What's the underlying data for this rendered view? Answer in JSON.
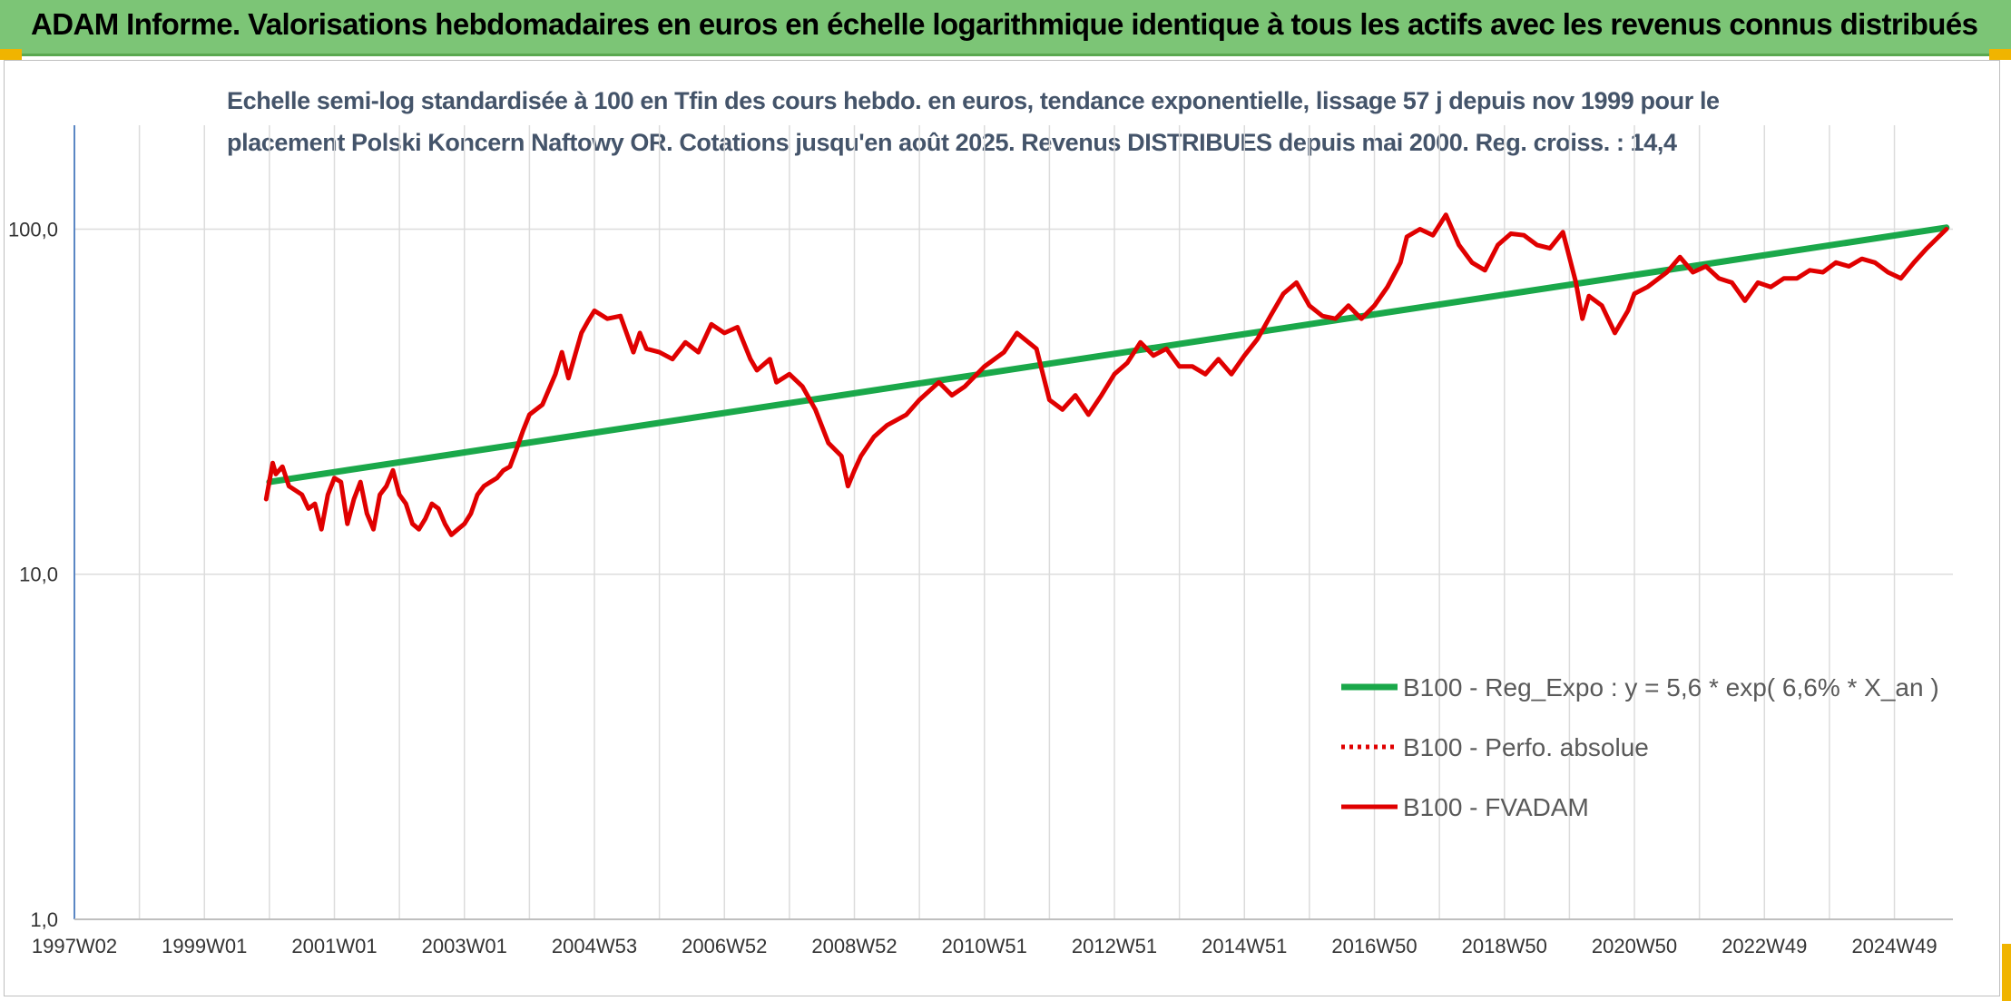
{
  "header": {
    "title": "ADAM Informe. Valorisations hebdomadaires en euros en échelle logarithmique identique à tous les actifs avec les revenus connus distribués",
    "background_color": "#7cc576"
  },
  "chart_data": {
    "type": "line",
    "title_line1": "Echelle semi-log standardisée à 100 en Tfin des cours hebdo. en euros, tendance exponentielle, lissage 57 j depuis nov 1999 pour le",
    "title_line2": "placement Polski Koncern Naftowy OR. Cotations jusqu'en août 2025. Revenus DISTRIBUES depuis mai 2000. Reg. croiss. : 14,4",
    "y_scale": "log",
    "ylim": [
      1,
      200
    ],
    "y_ticks": [
      {
        "value": 1,
        "label": "1,0"
      },
      {
        "value": 10,
        "label": "10,0"
      },
      {
        "value": 100,
        "label": "100,0"
      }
    ],
    "xlim": [
      1997.0,
      2025.9
    ],
    "x_ticks": [
      {
        "value": 1997.0,
        "label": "1997W02"
      },
      {
        "value": 1999.0,
        "label": "1999W01"
      },
      {
        "value": 2001.0,
        "label": "2001W01"
      },
      {
        "value": 2003.0,
        "label": "2003W01"
      },
      {
        "value": 2005.0,
        "label": "2004W53"
      },
      {
        "value": 2007.0,
        "label": "2006W52"
      },
      {
        "value": 2009.0,
        "label": "2008W52"
      },
      {
        "value": 2011.0,
        "label": "2010W51"
      },
      {
        "value": 2013.0,
        "label": "2012W51"
      },
      {
        "value": 2015.0,
        "label": "2014W51"
      },
      {
        "value": 2017.0,
        "label": "2016W50"
      },
      {
        "value": 2019.0,
        "label": "2018W50"
      },
      {
        "value": 2021.0,
        "label": "2020W50"
      },
      {
        "value": 2023.0,
        "label": "2022W49"
      },
      {
        "value": 2025.0,
        "label": "2024W49"
      }
    ],
    "x_gridlines": [
      1997.0,
      1998.0,
      1999.0,
      2000.0,
      2001.0,
      2002.0,
      2003.0,
      2004.0,
      2005.0,
      2006.0,
      2007.0,
      2008.0,
      2009.0,
      2010.0,
      2011.0,
      2012.0,
      2013.0,
      2014.0,
      2015.0,
      2016.0,
      2017.0,
      2018.0,
      2019.0,
      2020.0,
      2021.0,
      2022.0,
      2023.0,
      2024.0,
      2025.0
    ],
    "legend_position": "right",
    "series": [
      {
        "name": "B100 - Reg_Expo : y = 5,6 * exp( 6,6% *  X_an )",
        "color": "#1aa84a",
        "style": "solid",
        "x": [
          2000.0,
          2025.8
        ],
        "y": [
          18.5,
          101
        ]
      },
      {
        "name": "B100 - Perfo. absolue",
        "color": "#e00000",
        "style": "dotted",
        "x": [],
        "y": []
      },
      {
        "name": "B100 - FVADAM",
        "color": "#e00000",
        "style": "solid",
        "x": [
          1999.95,
          2000.05,
          2000.1,
          2000.2,
          2000.3,
          2000.4,
          2000.5,
          2000.6,
          2000.7,
          2000.8,
          2000.9,
          2001.0,
          2001.1,
          2001.2,
          2001.3,
          2001.4,
          2001.5,
          2001.6,
          2001.7,
          2001.8,
          2001.9,
          2002.0,
          2002.1,
          2002.2,
          2002.3,
          2002.4,
          2002.5,
          2002.6,
          2002.7,
          2002.8,
          2002.9,
          2003.0,
          2003.1,
          2003.2,
          2003.3,
          2003.4,
          2003.5,
          2003.6,
          2003.7,
          2003.8,
          2003.9,
          2004.0,
          2004.2,
          2004.4,
          2004.5,
          2004.6,
          2004.8,
          2004.9,
          2005.0,
          2005.2,
          2005.4,
          2005.6,
          2005.7,
          2005.8,
          2006.0,
          2006.2,
          2006.4,
          2006.6,
          2006.8,
          2007.0,
          2007.2,
          2007.4,
          2007.5,
          2007.7,
          2007.8,
          2008.0,
          2008.2,
          2008.4,
          2008.6,
          2008.8,
          2008.9,
          2009.0,
          2009.1,
          2009.3,
          2009.5,
          2009.8,
          2010.0,
          2010.3,
          2010.5,
          2010.7,
          2011.0,
          2011.3,
          2011.5,
          2011.8,
          2012.0,
          2012.2,
          2012.4,
          2012.6,
          2012.8,
          2013.0,
          2013.2,
          2013.4,
          2013.6,
          2013.8,
          2014.0,
          2014.2,
          2014.4,
          2014.6,
          2014.8,
          2015.0,
          2015.2,
          2015.4,
          2015.6,
          2015.8,
          2016.0,
          2016.2,
          2016.4,
          2016.6,
          2016.8,
          2017.0,
          2017.2,
          2017.4,
          2017.5,
          2017.7,
          2017.9,
          2018.1,
          2018.3,
          2018.5,
          2018.7,
          2018.9,
          2019.1,
          2019.3,
          2019.5,
          2019.7,
          2019.9,
          2020.1,
          2020.2,
          2020.3,
          2020.5,
          2020.7,
          2020.9,
          2021.0,
          2021.2,
          2021.5,
          2021.7,
          2021.9,
          2022.1,
          2022.3,
          2022.5,
          2022.7,
          2022.9,
          2023.1,
          2023.3,
          2023.5,
          2023.7,
          2023.9,
          2024.1,
          2024.3,
          2024.5,
          2024.7,
          2024.9,
          2025.1,
          2025.3,
          2025.5,
          2025.8
        ],
        "y": [
          16.5,
          21.0,
          19.5,
          20.5,
          18.0,
          17.5,
          17.0,
          15.5,
          16.0,
          13.5,
          17.0,
          19.0,
          18.5,
          14.0,
          16.5,
          18.5,
          15.0,
          13.5,
          17.0,
          18.0,
          20.0,
          17.0,
          16.0,
          14.0,
          13.5,
          14.5,
          16.0,
          15.5,
          14.0,
          13.0,
          13.5,
          14.0,
          15.0,
          17.0,
          18.0,
          18.5,
          19.0,
          20.0,
          20.5,
          23.0,
          26.0,
          29.0,
          31.0,
          38.0,
          44.0,
          37.0,
          50.0,
          54.0,
          58.0,
          55.0,
          56.0,
          44.0,
          50.0,
          45.0,
          44.0,
          42.0,
          47.0,
          44.0,
          53.0,
          50.0,
          52.0,
          42.0,
          39.0,
          42.0,
          36.0,
          38.0,
          35.0,
          30.0,
          24.0,
          22.0,
          18.0,
          20.0,
          22.0,
          25.0,
          27.0,
          29.0,
          32.0,
          36.0,
          33.0,
          35.0,
          40.0,
          44.0,
          50.0,
          45.0,
          32.0,
          30.0,
          33.0,
          29.0,
          33.0,
          38.0,
          41.0,
          47.0,
          43.0,
          45.0,
          40.0,
          40.0,
          38.0,
          42.0,
          38.0,
          43.0,
          48.0,
          56.0,
          65.0,
          70.0,
          60.0,
          56.0,
          55.0,
          60.0,
          55.0,
          60.0,
          68.0,
          80.0,
          95.0,
          100.0,
          96.0,
          110.0,
          90.0,
          80.0,
          76.0,
          90.0,
          97.0,
          96.0,
          90.0,
          88.0,
          98.0,
          70.0,
          55.0,
          64.0,
          60.0,
          50.0,
          58.0,
          65.0,
          68.0,
          75.0,
          83.0,
          75.0,
          78.0,
          72.0,
          70.0,
          62.0,
          70.0,
          68.0,
          72.0,
          72.0,
          76.0,
          75.0,
          80.0,
          78.0,
          82.0,
          80.0,
          75.0,
          72.0,
          80.0,
          88.0,
          100.0
        ]
      }
    ]
  }
}
